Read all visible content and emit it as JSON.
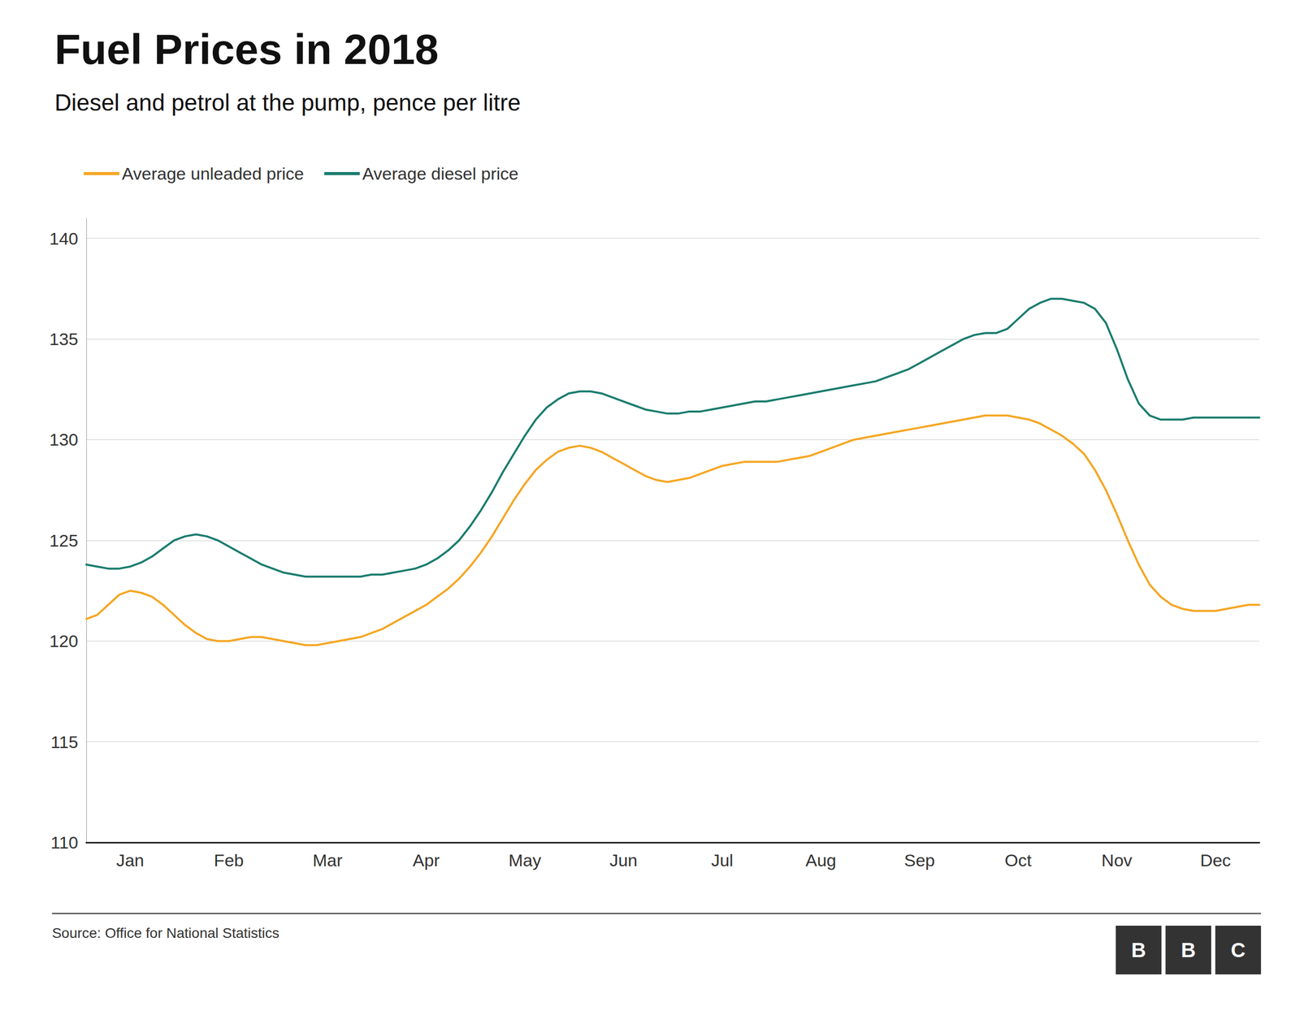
{
  "chart_data": {
    "type": "line",
    "title": "Fuel Prices in 2018",
    "subtitle": "Diesel and petrol at the pump, pence per litre",
    "source": "Source: Office for National Statistics",
    "logo": "BBC",
    "categories": [
      null,
      null,
      null,
      null,
      "Jan",
      null,
      null,
      null,
      null,
      null,
      null,
      null,
      null,
      "Feb",
      null,
      null,
      null,
      null,
      null,
      null,
      null,
      null,
      "Mar",
      null,
      null,
      null,
      null,
      null,
      null,
      null,
      null,
      "Apr",
      null,
      null,
      null,
      null,
      null,
      null,
      null,
      null,
      "May",
      null,
      null,
      null,
      null,
      null,
      null,
      null,
      null,
      "Jun",
      null,
      null,
      null,
      null,
      null,
      null,
      null,
      null,
      "Jul",
      null,
      null,
      null,
      null,
      null,
      null,
      null,
      null,
      "Aug",
      null,
      null,
      null,
      null,
      null,
      null,
      null,
      null,
      "Sep",
      null,
      null,
      null,
      null,
      null,
      null,
      null,
      null,
      "Oct",
      null,
      null,
      null,
      null,
      null,
      null,
      null,
      null,
      "Nov",
      null,
      null,
      null,
      null,
      null,
      null,
      null,
      null,
      "Dec",
      null,
      null,
      null,
      null
    ],
    "series": [
      {
        "name": "Average unleaded price",
        "color": "#f5a623",
        "values": [
          121.1,
          121.3,
          121.8,
          122.3,
          122.5,
          122.4,
          122.2,
          121.8,
          121.3,
          120.8,
          120.4,
          120.1,
          120.0,
          120.0,
          120.1,
          120.2,
          120.2,
          120.1,
          120.0,
          119.9,
          119.8,
          119.8,
          119.9,
          120.0,
          120.1,
          120.2,
          120.4,
          120.6,
          120.9,
          121.2,
          121.5,
          121.8,
          122.2,
          122.6,
          123.1,
          123.7,
          124.4,
          125.2,
          126.1,
          127.0,
          127.8,
          128.5,
          129.0,
          129.4,
          129.6,
          129.7,
          129.6,
          129.4,
          129.1,
          128.8,
          128.5,
          128.2,
          128.0,
          127.9,
          128.0,
          128.1,
          128.3,
          128.5,
          128.7,
          128.8,
          128.9,
          128.9,
          128.9,
          128.9,
          129.0,
          129.1,
          129.2,
          129.4,
          129.6,
          129.8,
          130.0,
          130.1,
          130.2,
          130.3,
          130.4,
          130.5,
          130.6,
          130.7,
          130.8,
          130.9,
          131.0,
          131.1,
          131.2,
          131.2,
          131.2,
          131.1,
          131.0,
          130.8,
          130.5,
          130.2,
          129.8,
          129.3,
          128.5,
          127.5,
          126.3,
          125.0,
          123.8,
          122.8,
          122.2,
          121.8,
          121.6,
          121.5,
          121.5,
          121.5,
          121.6,
          121.7,
          121.8,
          121.8
        ]
      },
      {
        "name": "Average diesel price",
        "color": "#1a7c6e",
        "values": [
          123.8,
          123.7,
          123.6,
          123.6,
          123.7,
          123.9,
          124.2,
          124.6,
          125.0,
          125.2,
          125.3,
          125.2,
          125.0,
          124.7,
          124.4,
          124.1,
          123.8,
          123.6,
          123.4,
          123.3,
          123.2,
          123.2,
          123.2,
          123.2,
          123.2,
          123.2,
          123.3,
          123.3,
          123.4,
          123.5,
          123.6,
          123.8,
          124.1,
          124.5,
          125.0,
          125.7,
          126.5,
          127.4,
          128.4,
          129.3,
          130.2,
          131.0,
          131.6,
          132.0,
          132.3,
          132.4,
          132.4,
          132.3,
          132.1,
          131.9,
          131.7,
          131.5,
          131.4,
          131.3,
          131.3,
          131.4,
          131.4,
          131.5,
          131.6,
          131.7,
          131.8,
          131.9,
          131.9,
          132.0,
          132.1,
          132.2,
          132.3,
          132.4,
          132.5,
          132.6,
          132.7,
          132.8,
          132.9,
          133.1,
          133.3,
          133.5,
          133.8,
          134.1,
          134.4,
          134.7,
          135.0,
          135.2,
          135.3,
          135.3,
          135.5,
          136.0,
          136.5,
          136.8,
          137.0,
          137.0,
          136.9,
          136.8,
          136.5,
          135.8,
          134.5,
          133.0,
          131.8,
          131.2,
          131.0,
          131.0,
          131.0,
          131.1,
          131.1,
          131.1,
          131.1,
          131.1,
          131.1,
          131.1
        ]
      }
    ],
    "ylim": [
      110,
      141
    ],
    "yticks": [
      110,
      115,
      120,
      125,
      130,
      135,
      140
    ],
    "grid": true,
    "legend": "top left"
  }
}
